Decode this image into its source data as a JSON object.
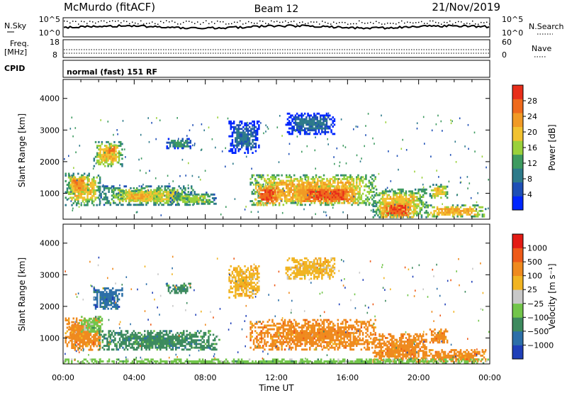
{
  "header": {
    "station": "McMurdo (fitACF)",
    "beam": "Beam 12",
    "date": "21/Nov/2019"
  },
  "top_panel": {
    "left_label": "N.Sky",
    "right_label": "N.Search",
    "left_ticks": [
      "10^5",
      "10^0"
    ],
    "right_ticks": [
      "10^5",
      "10^0"
    ]
  },
  "freq_panel": {
    "label_line1": "Freq.",
    "label_line2": "[MHz]",
    "left_ticks": [
      "18",
      "8"
    ],
    "right_label": "Nave",
    "right_ticks": [
      "60",
      "0"
    ]
  },
  "cpid": {
    "label": "CPID",
    "text": "normal (fast) 151 RF"
  },
  "chart_data": [
    {
      "type": "heatmap",
      "name": "Power",
      "ylabel": "Slant Range [km]",
      "xlabel": "Time UT",
      "x_ticks": [
        "00:00",
        "04:00",
        "08:00",
        "12:00",
        "16:00",
        "20:00",
        "00:00"
      ],
      "x_range_hours": [
        0,
        24
      ],
      "y_range_km": [
        180,
        4600
      ],
      "y_ticks": [
        1000,
        2000,
        3000,
        4000
      ],
      "colorbar": {
        "label": "Power [dB]",
        "range": [
          0,
          32
        ],
        "ticks": [
          4,
          8,
          12,
          16,
          20,
          24,
          28
        ],
        "colors": [
          "#0026ff",
          "#1e4fb6",
          "#2d7a8a",
          "#3e9b60",
          "#9ad13b",
          "#f2c230",
          "#f19a25",
          "#ef6a1c",
          "#e82e1a"
        ]
      },
      "echo_regions": [
        {
          "t0": 0.1,
          "t1": 2.1,
          "r0": 650,
          "r1": 1650,
          "level": 20
        },
        {
          "t0": 0.3,
          "t1": 1.4,
          "r0": 1000,
          "r1": 1600,
          "level": 24
        },
        {
          "t0": 1.7,
          "t1": 3.3,
          "r0": 1850,
          "r1": 2650,
          "level": 20
        },
        {
          "t0": 2.3,
          "t1": 3.0,
          "r0": 2250,
          "r1": 2550,
          "level": 26
        },
        {
          "t0": 2.0,
          "t1": 7.4,
          "r0": 650,
          "r1": 1250,
          "level": 18
        },
        {
          "t0": 3.2,
          "t1": 5.3,
          "r0": 750,
          "r1": 1100,
          "level": 22
        },
        {
          "t0": 5.8,
          "t1": 7.2,
          "r0": 2450,
          "r1": 2750,
          "level": 12
        },
        {
          "t0": 6.0,
          "t1": 8.6,
          "r0": 650,
          "r1": 1050,
          "level": 16
        },
        {
          "t0": 9.3,
          "t1": 11.0,
          "r0": 2300,
          "r1": 3300,
          "level": 8
        },
        {
          "t0": 10.5,
          "t1": 17.6,
          "r0": 650,
          "r1": 1600,
          "level": 22
        },
        {
          "t0": 10.8,
          "t1": 12.2,
          "r0": 650,
          "r1": 1300,
          "level": 28
        },
        {
          "t0": 13.0,
          "t1": 16.6,
          "r0": 700,
          "r1": 1250,
          "level": 28
        },
        {
          "t0": 12.5,
          "t1": 15.3,
          "r0": 2900,
          "r1": 3550,
          "level": 8
        },
        {
          "t0": 17.4,
          "t1": 20.4,
          "r0": 250,
          "r1": 1150,
          "level": 20
        },
        {
          "t0": 17.8,
          "t1": 19.7,
          "r0": 250,
          "r1": 750,
          "level": 28
        },
        {
          "t0": 20.3,
          "t1": 23.8,
          "r0": 280,
          "r1": 650,
          "level": 22
        },
        {
          "t0": 20.6,
          "t1": 21.6,
          "r0": 850,
          "r1": 1300,
          "level": 20
        }
      ]
    },
    {
      "type": "heatmap",
      "name": "Velocity",
      "ylabel": "Slant Range [km]",
      "xlabel": "Time UT",
      "x_ticks": [
        "00:00",
        "04:00",
        "08:00",
        "12:00",
        "16:00",
        "20:00",
        "00:00"
      ],
      "x_range_hours": [
        0,
        24
      ],
      "y_range_km": [
        180,
        4600
      ],
      "y_ticks": [
        1000,
        2000,
        3000,
        4000
      ],
      "colorbar": {
        "label": "Velocity [m s⁻¹]",
        "ticks": [
          "1000",
          "500",
          "100",
          "25",
          "−25",
          "−100",
          "−500",
          "−1000"
        ],
        "colors": [
          "#1f3fb8",
          "#2c6fa8",
          "#3d8a5e",
          "#72c54a",
          "#c8c8c8",
          "#f1b422",
          "#ef8a1e",
          "#ee5a18",
          "#e31b14"
        ]
      },
      "echo_regions": [
        {
          "t0": 0.1,
          "t1": 2.1,
          "r0": 650,
          "r1": 1650,
          "level": 6
        },
        {
          "t0": 0.3,
          "t1": 1.2,
          "r0": 1000,
          "r1": 1500,
          "level": 6
        },
        {
          "t0": 1.0,
          "t1": 2.2,
          "r0": 1200,
          "r1": 1700,
          "level": 3
        },
        {
          "t0": 1.7,
          "t1": 3.3,
          "r0": 1900,
          "r1": 2600,
          "level": 1
        },
        {
          "t0": 2.0,
          "t1": 8.6,
          "r0": 650,
          "r1": 1250,
          "level": 2
        },
        {
          "t0": 5.8,
          "t1": 7.2,
          "r0": 2450,
          "r1": 2750,
          "level": 2
        },
        {
          "t0": 9.3,
          "t1": 11.0,
          "r0": 2300,
          "r1": 3300,
          "level": 5
        },
        {
          "t0": 10.5,
          "t1": 17.6,
          "r0": 650,
          "r1": 1600,
          "level": 6
        },
        {
          "t0": 12.5,
          "t1": 15.3,
          "r0": 2900,
          "r1": 3550,
          "level": 5
        },
        {
          "t0": 17.4,
          "t1": 20.4,
          "r0": 250,
          "r1": 1150,
          "level": 6
        },
        {
          "t0": 20.3,
          "t1": 23.8,
          "r0": 280,
          "r1": 650,
          "level": 6
        },
        {
          "t0": 20.6,
          "t1": 21.6,
          "r0": 850,
          "r1": 1300,
          "level": 6
        },
        {
          "t0": 0.0,
          "t1": 24.0,
          "r0": 180,
          "r1": 350,
          "level": 3
        }
      ]
    }
  ]
}
